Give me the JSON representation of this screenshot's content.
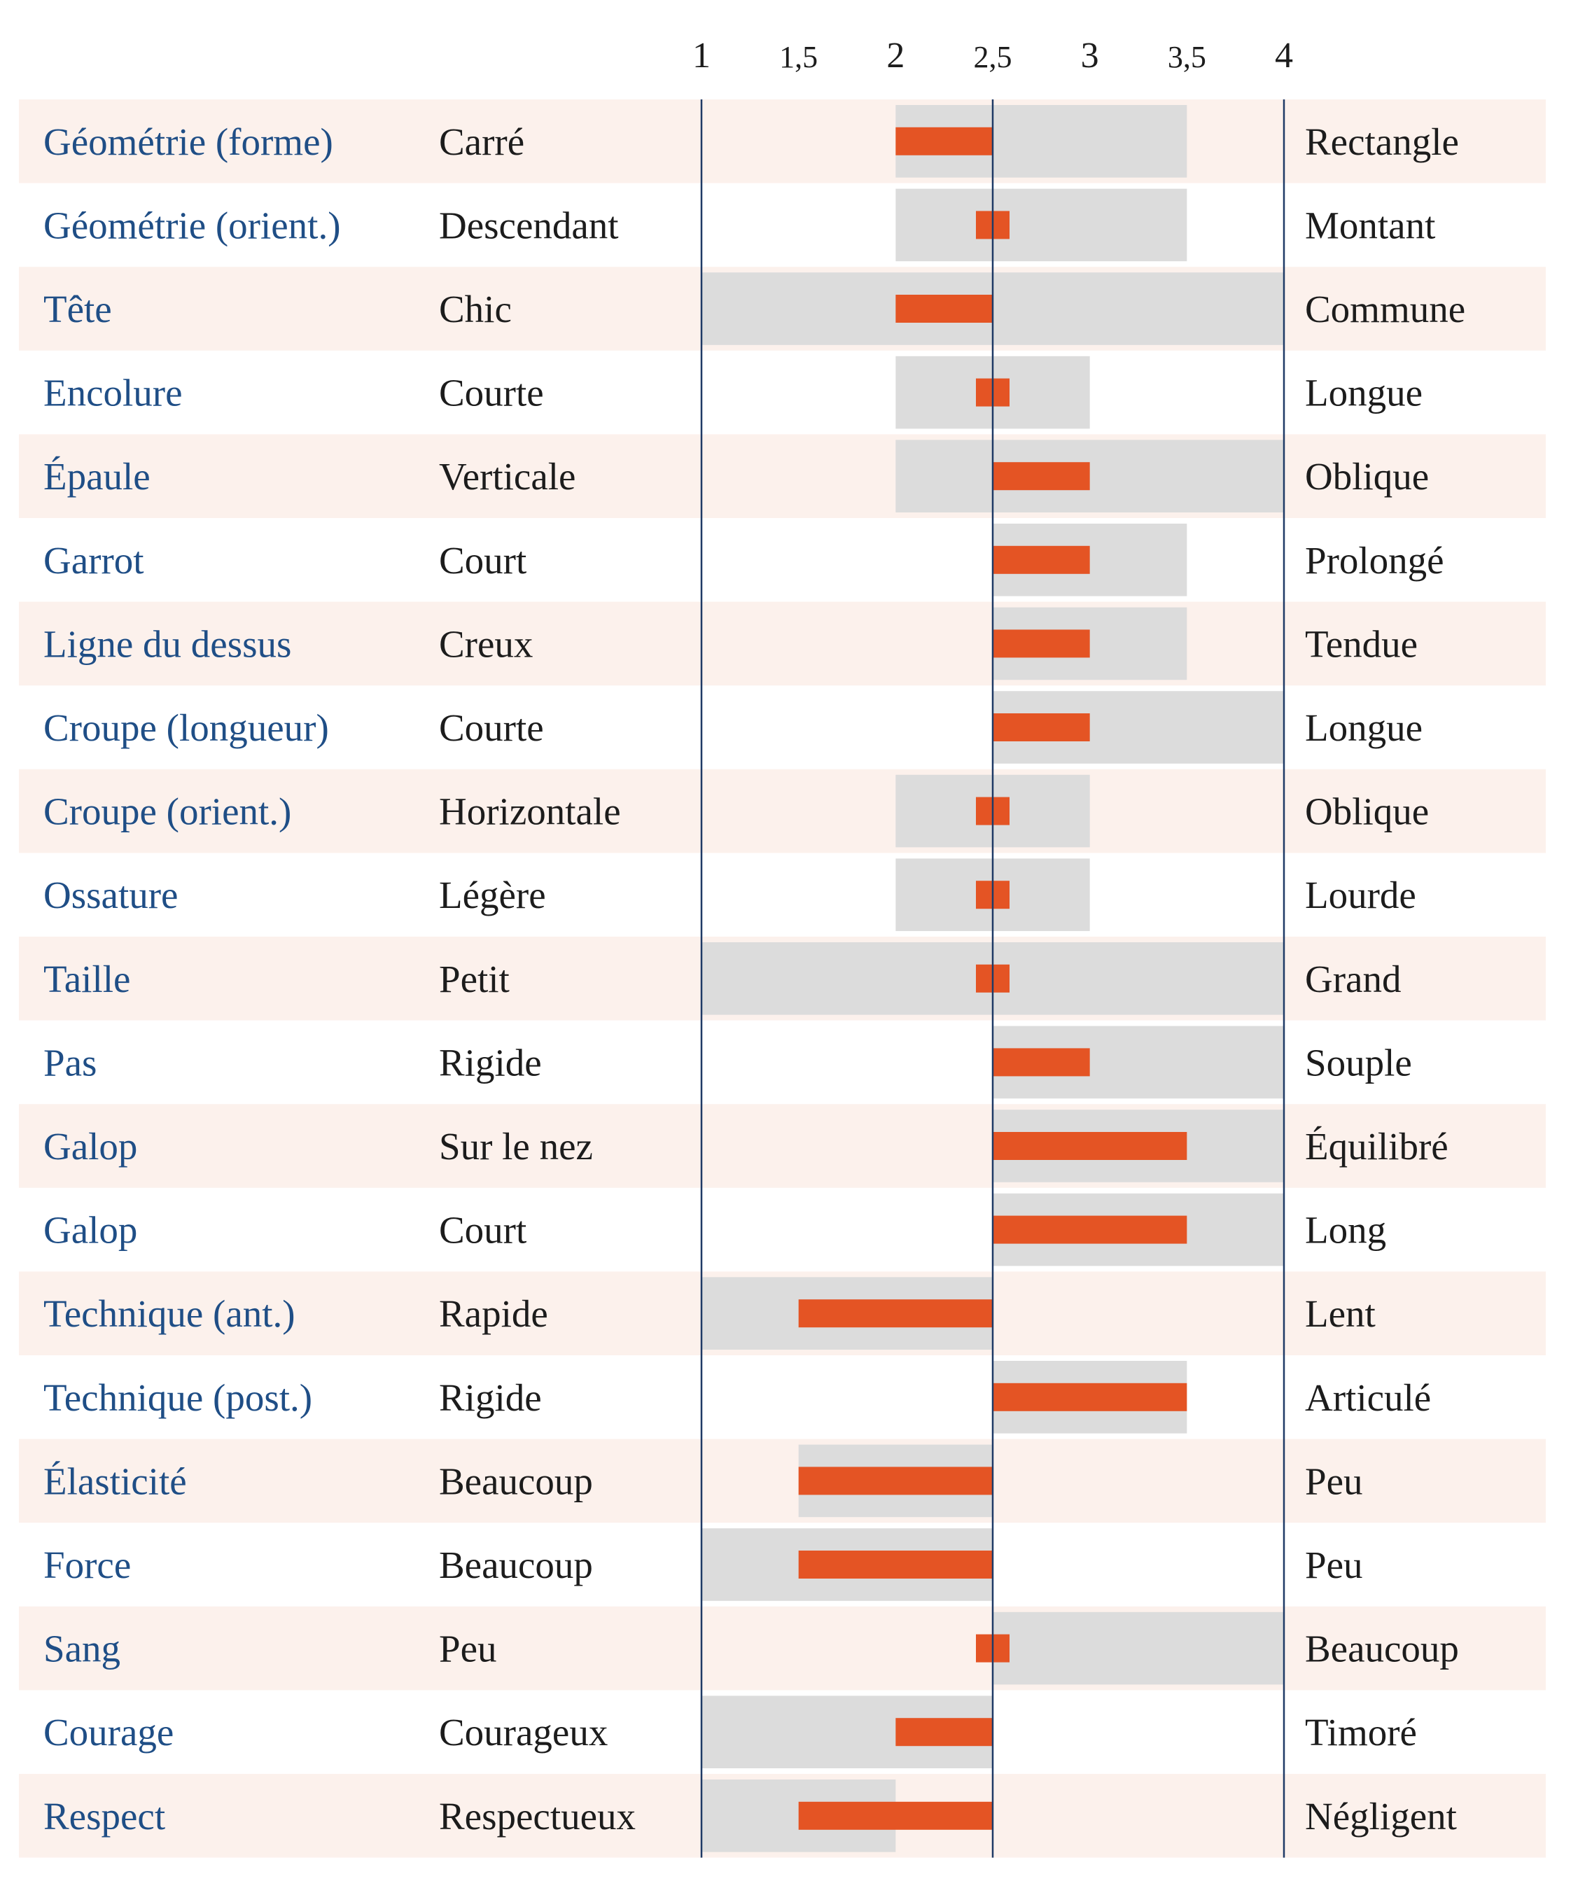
{
  "colors": {
    "stripe": "#fcf1ec",
    "range": "#dcdcdc",
    "value": "#e45424",
    "trait_text": "#1f4e86",
    "label_text": "#1c1c1c",
    "axis_line": "#1f3a66"
  },
  "chart_data": {
    "type": "bar",
    "orientation": "horizontal",
    "title": "",
    "xlabel": "",
    "ylabel": "",
    "xlim": [
      1,
      4
    ],
    "reference_line": 2.5,
    "ticks": [
      {
        "value": 1,
        "label": "1"
      },
      {
        "value": 1.5,
        "label": "1,5"
      },
      {
        "value": 2,
        "label": "2"
      },
      {
        "value": 2.5,
        "label": "2,5"
      },
      {
        "value": 3,
        "label": "3"
      },
      {
        "value": 3.5,
        "label": "3,5"
      },
      {
        "value": 4,
        "label": "4"
      }
    ],
    "series": [
      {
        "role": "range",
        "encoding": "grey band, min to max"
      },
      {
        "role": "value",
        "encoding": "orange bar drawn from 2.5 to value"
      }
    ],
    "rows": [
      {
        "trait": "Géométrie (forme)",
        "low": "Carré",
        "high": "Rectangle",
        "range": [
          2,
          3.5
        ],
        "value": 2
      },
      {
        "trait": "Géométrie (orient.)",
        "low": "Descendant",
        "high": "Montant",
        "range": [
          2,
          3.5
        ],
        "value": 2.5
      },
      {
        "trait": "Tête",
        "low": "Chic",
        "high": "Commune",
        "range": [
          1,
          4
        ],
        "value": 2
      },
      {
        "trait": "Encolure",
        "low": "Courte",
        "high": "Longue",
        "range": [
          2,
          3
        ],
        "value": 2.5
      },
      {
        "trait": "Épaule",
        "low": "Verticale",
        "high": "Oblique",
        "range": [
          2,
          4
        ],
        "value": 3
      },
      {
        "trait": "Garrot",
        "low": "Court",
        "high": "Prolongé",
        "range": [
          2.5,
          3.5
        ],
        "value": 3
      },
      {
        "trait": "Ligne du dessus",
        "low": "Creux",
        "high": "Tendue",
        "range": [
          2.5,
          3.5
        ],
        "value": 3
      },
      {
        "trait": "Croupe (longueur)",
        "low": "Courte",
        "high": "Longue",
        "range": [
          2.5,
          4
        ],
        "value": 3
      },
      {
        "trait": "Croupe (orient.)",
        "low": "Horizontale",
        "high": "Oblique",
        "range": [
          2,
          3
        ],
        "value": 2.5
      },
      {
        "trait": "Ossature",
        "low": "Légère",
        "high": "Lourde",
        "range": [
          2,
          3
        ],
        "value": 2.5
      },
      {
        "trait": "Taille",
        "low": "Petit",
        "high": "Grand",
        "range": [
          1,
          4
        ],
        "value": 2.5
      },
      {
        "trait": "Pas",
        "low": "Rigide",
        "high": "Souple",
        "range": [
          2.5,
          4
        ],
        "value": 3
      },
      {
        "trait": "Galop",
        "low": "Sur le nez",
        "high": "Équilibré",
        "range": [
          2.5,
          4
        ],
        "value": 3.5
      },
      {
        "trait": "Galop",
        "low": "Court",
        "high": "Long",
        "range": [
          2.5,
          4
        ],
        "value": 3.5
      },
      {
        "trait": "Technique (ant.)",
        "low": "Rapide",
        "high": "Lent",
        "range": [
          1,
          2.5
        ],
        "value": 1.5
      },
      {
        "trait": "Technique (post.)",
        "low": "Rigide",
        "high": "Articulé",
        "range": [
          2.5,
          3.5
        ],
        "value": 3.5
      },
      {
        "trait": "Élasticité",
        "low": "Beaucoup",
        "high": "Peu",
        "range": [
          1.5,
          2.5
        ],
        "value": 1.5
      },
      {
        "trait": "Force",
        "low": "Beaucoup",
        "high": "Peu",
        "range": [
          1,
          2.5
        ],
        "value": 1.5
      },
      {
        "trait": "Sang",
        "low": "Peu",
        "high": "Beaucoup",
        "range": [
          2.5,
          4
        ],
        "value": 2.5
      },
      {
        "trait": "Courage",
        "low": "Courageux",
        "high": "Timoré",
        "range": [
          1,
          2.5
        ],
        "value": 2
      },
      {
        "trait": "Respect",
        "low": "Respectueux",
        "high": "Négligent",
        "range": [
          1,
          2
        ],
        "value": 1.5
      }
    ]
  }
}
